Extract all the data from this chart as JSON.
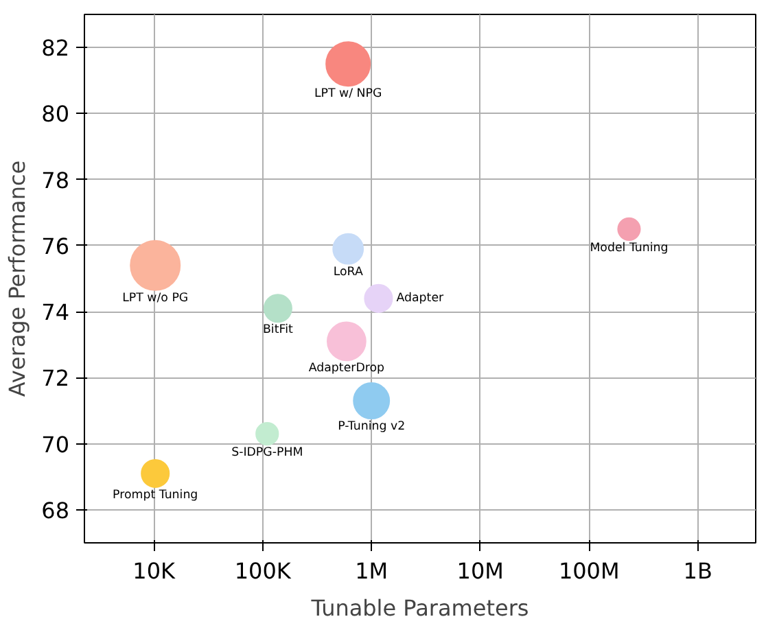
{
  "chart_data": {
    "type": "bubble",
    "xlabel": "Tunable Parameters",
    "ylabel": "Average Performance",
    "log": "x",
    "grid": true,
    "xlim": [
      2300,
      3400000000
    ],
    "ylim": [
      67,
      83
    ],
    "xticks": [
      {
        "value": 10000,
        "label": "10K"
      },
      {
        "value": 100000,
        "label": "100K"
      },
      {
        "value": 1000000,
        "label": "1M"
      },
      {
        "value": 10000000,
        "label": "10M"
      },
      {
        "value": 100000000,
        "label": "100M"
      },
      {
        "value": 1000000000,
        "label": "1B"
      }
    ],
    "yticks": [
      68,
      70,
      72,
      74,
      76,
      78,
      80,
      82
    ],
    "series": [
      {
        "name": "LPT w/ NPG",
        "color": "#f8877f",
        "x": [
          610000
        ],
        "values": [
          81.5
        ],
        "sizes": [
          0.79
        ]
      },
      {
        "name": "LPT w/o PG",
        "color": "#fbb49c",
        "x": [
          10300
        ],
        "values": [
          75.4
        ],
        "sizes": [
          1
        ]
      },
      {
        "name": "Model Tuning",
        "color": "#f4a0b0",
        "x": [
          233000000
        ],
        "values": [
          76.5
        ],
        "sizes": [
          0.2
        ]
      },
      {
        "name": "LoRA",
        "color": "#c6dbf7",
        "x": [
          610000
        ],
        "values": [
          75.9
        ],
        "sizes": [
          0.37
        ]
      },
      {
        "name": "BitFit",
        "color": "#b4e0c8",
        "x": [
          138000
        ],
        "values": [
          74.1
        ],
        "sizes": [
          0.31
        ]
      },
      {
        "name": "Adapter",
        "color": "#e6d3f7",
        "x": [
          1160000
        ],
        "values": [
          74.4
        ],
        "sizes": [
          0.31
        ]
      },
      {
        "name": "AdapterDrop",
        "color": "#f8c0d8",
        "x": [
          590000
        ],
        "values": [
          73.1
        ],
        "sizes": [
          0.6
        ]
      },
      {
        "name": "P-Tuning v2",
        "color": "#8fcbf0",
        "x": [
          1000000
        ],
        "values": [
          71.3
        ],
        "sizes": [
          0.52
        ]
      },
      {
        "name": "S-IDPG-PHM",
        "color": "#c2ecd0",
        "x": [
          110000
        ],
        "values": [
          70.3
        ],
        "sizes": [
          0.2
        ]
      },
      {
        "name": "Prompt Tuning",
        "color": "#fcc93b",
        "x": [
          10300
        ],
        "values": [
          69.1
        ],
        "sizes": [
          0.31
        ]
      }
    ]
  }
}
